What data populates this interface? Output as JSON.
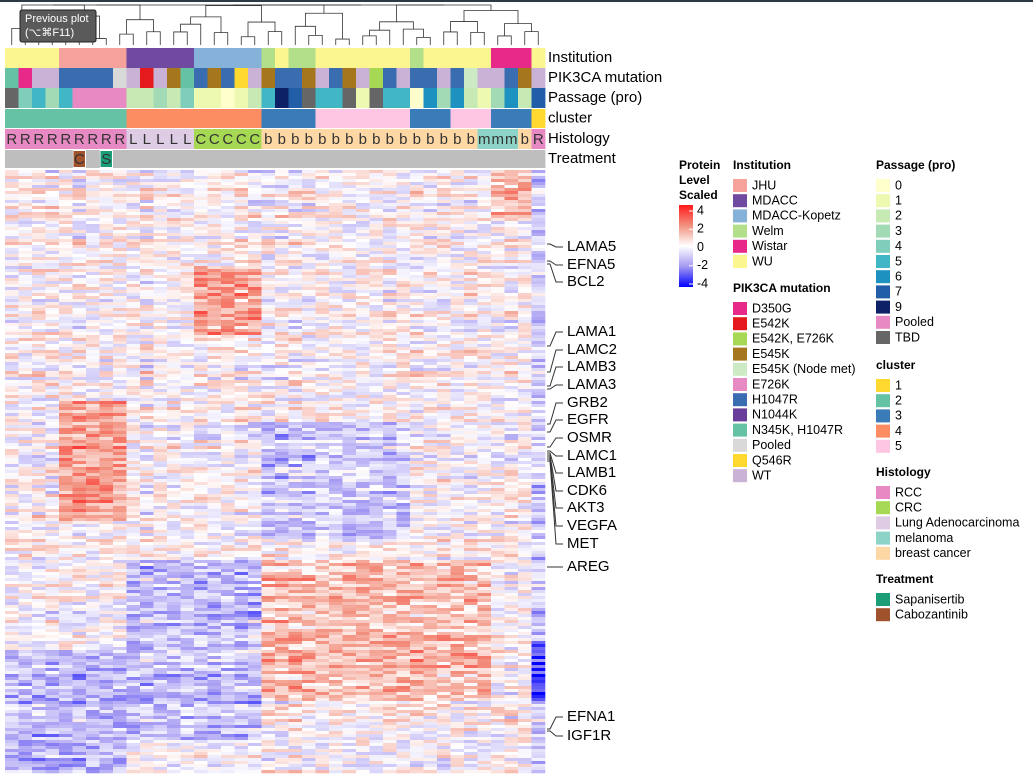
{
  "tooltip": {
    "title": "Previous plot",
    "shortcut": "(⌥⌘F11)"
  },
  "annotation_tracks": [
    {
      "name": "Institution",
      "columns": [
        "WU",
        "WU",
        "WU",
        "WU",
        "JHU",
        "JHU",
        "JHU",
        "JHU",
        "JHU",
        "MDACC",
        "MDACC",
        "MDACC",
        "MDACC",
        "MDACC",
        "MDACC-Kopetz",
        "MDACC-Kopetz",
        "MDACC-Kopetz",
        "MDACC-Kopetz",
        "MDACC-Kopetz",
        "Welm",
        "WU",
        "Welm",
        "Welm",
        "WU",
        "WU",
        "WU",
        "WU",
        "WU",
        "WU",
        "WU",
        "Welm",
        "WU",
        "WU",
        "WU",
        "WU",
        "WU",
        "Wistar",
        "Wistar",
        "Wistar",
        "WU"
      ]
    },
    {
      "name": "PIK3CA mutation",
      "columns": [
        "N345K, H1047R",
        "D350G",
        "WT",
        "WT",
        "H1047R",
        "H1047R",
        "H1047R",
        "H1047R",
        "Pooled",
        "WT",
        "E542K",
        "WT",
        "E545K",
        "N345K, H1047R",
        "H1047R",
        "E545K",
        "H1047R",
        "Q546R",
        "WT",
        "E545K",
        "H1047R",
        "H1047R",
        "E545K",
        "WT",
        "H1047R",
        "E545K",
        "WT",
        "E542K, E726K",
        "H1047R",
        "WT",
        "H1047R",
        "H1047R",
        "WT",
        "H1047R",
        "E545K (Node met)",
        "WT",
        "WT",
        "H1047R",
        "E545K",
        "WT"
      ]
    },
    {
      "name": "Passage (pro)",
      "columns": [
        "TBD",
        "4",
        "5",
        "3",
        "5",
        "Pooled",
        "Pooled",
        "Pooled",
        "Pooled",
        "2",
        "2",
        "3",
        "2",
        "4",
        "1",
        "1",
        "0",
        "1",
        "2",
        "5",
        "9",
        "7",
        "TBD",
        "5",
        "5",
        "TBD",
        "1",
        "TBD",
        "5",
        "5",
        "0",
        "6",
        "3",
        "6",
        "2",
        "1",
        "3",
        "6",
        "2",
        "7"
      ]
    },
    {
      "name": "cluster",
      "columns": [
        "2",
        "2",
        "2",
        "2",
        "2",
        "2",
        "2",
        "2",
        "2",
        "4",
        "4",
        "4",
        "4",
        "4",
        "4",
        "4",
        "4",
        "4",
        "4",
        "3",
        "3",
        "3",
        "3",
        "5",
        "5",
        "5",
        "5",
        "5",
        "5",
        "5",
        "3",
        "3",
        "3",
        "5",
        "5",
        "5",
        "3",
        "3",
        "3",
        "1"
      ]
    },
    {
      "name": "Histology",
      "columns": [
        "RCC",
        "RCC",
        "RCC",
        "RCC",
        "RCC",
        "RCC",
        "RCC",
        "RCC",
        "RCC",
        "Lung Adenocarcinoma",
        "Lung Adenocarcinoma",
        "Lung Adenocarcinoma",
        "Lung Adenocarcinoma",
        "Lung Adenocarcinoma",
        "CRC",
        "CRC",
        "CRC",
        "CRC",
        "CRC",
        "breast cancer",
        "breast cancer",
        "breast cancer",
        "breast cancer",
        "breast cancer",
        "breast cancer",
        "breast cancer",
        "breast cancer",
        "breast cancer",
        "breast cancer",
        "breast cancer",
        "breast cancer",
        "breast cancer",
        "breast cancer",
        "breast cancer",
        "breast cancer",
        "melanoma",
        "melanoma",
        "melanoma",
        "breast cancer",
        "RCC"
      ],
      "letters": [
        "R",
        "R",
        "R",
        "R",
        "R",
        "R",
        "R",
        "R",
        "R",
        "L",
        "L",
        "L",
        "L",
        "L",
        "C",
        "C",
        "C",
        "C",
        "C",
        "b",
        "b",
        "b",
        "b",
        "b",
        "b",
        "b",
        "b",
        "b",
        "b",
        "b",
        "b",
        "b",
        "b",
        "b",
        "b",
        "m",
        "m",
        "m",
        "b",
        "R"
      ]
    },
    {
      "name": "Treatment",
      "columns": [
        null,
        null,
        null,
        null,
        null,
        "Cabozantinib",
        null,
        "Sapanisertib",
        null,
        null,
        null,
        null,
        null,
        null,
        null,
        null,
        null,
        null,
        null,
        null,
        null,
        null,
        null,
        null,
        null,
        null,
        null,
        null,
        null,
        null,
        null,
        null,
        null,
        null,
        null,
        null,
        null,
        null,
        null,
        null
      ],
      "letters": [
        null,
        null,
        null,
        null,
        null,
        "C",
        null,
        "S",
        null,
        null,
        null,
        null,
        null,
        null,
        null,
        null,
        null,
        null,
        null,
        null,
        null,
        null,
        null,
        null,
        null,
        null,
        null,
        null,
        null,
        null,
        null,
        null,
        null,
        null,
        null,
        null,
        null,
        null,
        null,
        null
      ]
    }
  ],
  "genes": [
    "LAMA5",
    "EFNA5",
    "BCL2",
    "LAMA1",
    "LAMC2",
    "LAMB3",
    "LAMA3",
    "GRB2",
    "EGFR",
    "OSMR",
    "LAMC1",
    "LAMB1",
    "CDK6",
    "AKT3",
    "VEGFA",
    "MET",
    "AREG",
    "EFNA1",
    "IGF1R"
  ],
  "color_scale": {
    "title": [
      "Protein",
      "Level",
      "Scaled"
    ],
    "colors": [
      "#0000ff",
      "#a49af2",
      "#ffffff",
      "#f2917f",
      "#ff1a1a"
    ],
    "lim": [
      -4,
      4
    ],
    "ticks": [
      4,
      2,
      0,
      -2,
      -4
    ]
  },
  "legends": [
    {
      "title": "Institution",
      "entries": [
        {
          "label": "JHU",
          "color": "#f4a29b"
        },
        {
          "label": "MDACC",
          "color": "#7049a0"
        },
        {
          "label": "MDACC-Kopetz",
          "color": "#86b1d8"
        },
        {
          "label": "Welm",
          "color": "#b3df8a"
        },
        {
          "label": "Wistar",
          "color": "#e7298a"
        },
        {
          "label": "WU",
          "color": "#fcf690"
        }
      ]
    },
    {
      "title": "PIK3CA mutation",
      "entries": [
        {
          "label": "D350G",
          "color": "#e7298a"
        },
        {
          "label": "E542K",
          "color": "#e41a1c"
        },
        {
          "label": "E542K, E726K",
          "color": "#a6d854"
        },
        {
          "label": "E545K",
          "color": "#a6761d"
        },
        {
          "label": "E545K (Node met)",
          "color": "#ccebc5"
        },
        {
          "label": "E726K",
          "color": "#e78ac3"
        },
        {
          "label": "H1047R",
          "color": "#3a6db0"
        },
        {
          "label": "N1044K",
          "color": "#6a3d9a"
        },
        {
          "label": "N345K, H1047R",
          "color": "#66c2a5"
        },
        {
          "label": "Pooled",
          "color": "#d9d9d9"
        },
        {
          "label": "Q546R",
          "color": "#ffd92f"
        },
        {
          "label": "WT",
          "color": "#cab2d6"
        }
      ]
    },
    {
      "title": "Passage (pro)",
      "entries": [
        {
          "label": "0",
          "color": "#ffffcc"
        },
        {
          "label": "1",
          "color": "#edf8b1"
        },
        {
          "label": "2",
          "color": "#c7e9b4"
        },
        {
          "label": "3",
          "color": "#a1dab4"
        },
        {
          "label": "4",
          "color": "#7fcdbb"
        },
        {
          "label": "5",
          "color": "#41b6c4"
        },
        {
          "label": "6",
          "color": "#1d91c0"
        },
        {
          "label": "7",
          "color": "#225ea8"
        },
        {
          "label": "9",
          "color": "#0c2166"
        },
        {
          "label": "Pooled",
          "color": "#e78ac3"
        },
        {
          "label": "TBD",
          "color": "#666666"
        }
      ]
    },
    {
      "title": "cluster",
      "entries": [
        {
          "label": "1",
          "color": "#ffd92f"
        },
        {
          "label": "2",
          "color": "#66c2a5"
        },
        {
          "label": "3",
          "color": "#3a7cb8"
        },
        {
          "label": "4",
          "color": "#fc8d62"
        },
        {
          "label": "5",
          "color": "#ffc6e3"
        }
      ]
    },
    {
      "title": "Histology",
      "entries": [
        {
          "label": "RCC",
          "color": "#e78ac3"
        },
        {
          "label": "CRC",
          "color": "#a6d854"
        },
        {
          "label": "Lung Adenocarcinoma",
          "color": "#decbe4"
        },
        {
          "label": "melanoma",
          "color": "#8dd3c7"
        },
        {
          "label": "breast cancer",
          "color": "#fdd7a4"
        }
      ]
    },
    {
      "title": "Treatment",
      "entries": [
        {
          "label": "Sapanisertib",
          "color": "#1b9e77"
        },
        {
          "label": "Cabozantinib",
          "color": "#a0522d"
        }
      ]
    }
  ]
}
